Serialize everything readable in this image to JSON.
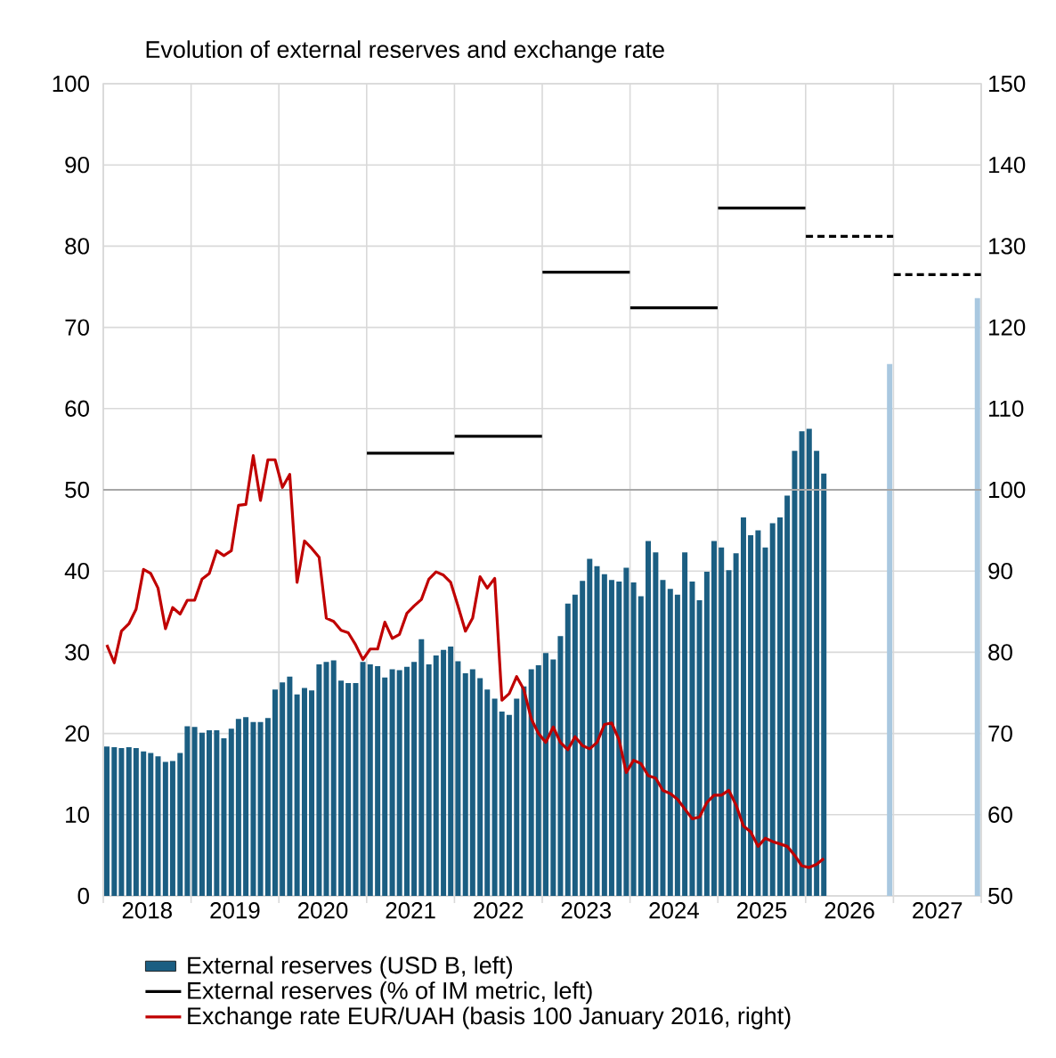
{
  "chart_data": {
    "type": "bar",
    "title": "Evolution of external reserves and exchange rate",
    "x": [
      "2018-01-16",
      "2018-02-15",
      "2018-03-16",
      "2018-04-16",
      "2018-05-16",
      "2018-06-16",
      "2018-07-16",
      "2018-08-16",
      "2018-09-16",
      "2018-10-16",
      "2018-11-16",
      "2018-12-16",
      "2019-01-16",
      "2019-02-15",
      "2019-03-16",
      "2019-04-16",
      "2019-05-16",
      "2019-06-16",
      "2019-07-16",
      "2019-08-16",
      "2019-09-16",
      "2019-10-16",
      "2019-11-16",
      "2019-12-16",
      "2020-01-16",
      "2020-02-15",
      "2020-03-16",
      "2020-04-16",
      "2020-05-16",
      "2020-06-16",
      "2020-07-16",
      "2020-08-16",
      "2020-09-16",
      "2020-10-16",
      "2020-11-16",
      "2020-12-16",
      "2021-01-16",
      "2021-02-15",
      "2021-03-16",
      "2021-04-16",
      "2021-05-16",
      "2021-06-16",
      "2021-07-16",
      "2021-08-16",
      "2021-09-16",
      "2021-10-16",
      "2021-11-16",
      "2021-12-16",
      "2022-01-16",
      "2022-02-15",
      "2022-03-16",
      "2022-04-16",
      "2022-05-16",
      "2022-06-16",
      "2022-07-16",
      "2022-08-16",
      "2022-09-16",
      "2022-10-16",
      "2022-11-16",
      "2022-12-16",
      "2023-01-16",
      "2023-02-15",
      "2023-03-16",
      "2023-04-16",
      "2023-05-16",
      "2023-06-16",
      "2023-07-16",
      "2023-08-16",
      "2023-09-16",
      "2023-10-16",
      "2023-11-16",
      "2023-12-16",
      "2024-01-16",
      "2024-02-15",
      "2024-03-16",
      "2024-04-16",
      "2024-05-16",
      "2024-06-16",
      "2024-07-16",
      "2024-08-16",
      "2024-09-16",
      "2024-10-16",
      "2024-11-16",
      "2024-12-16",
      "2025-01-16",
      "2025-02-15",
      "2025-03-16",
      "2025-04-16",
      "2025-05-16",
      "2025-06-16",
      "2025-07-16",
      "2025-08-16",
      "2025-09-16",
      "2025-10-16",
      "2025-11-16",
      "2025-12-16",
      "2026-01-16",
      "2026-02-15",
      "2026-03-16"
    ],
    "series": [
      {
        "name": "External reserves (USD B, left)",
        "color": "#1b5e82",
        "values": [
          18.4,
          18.3,
          18.2,
          18.3,
          18.2,
          17.8,
          17.6,
          17.2,
          16.5,
          16.6,
          17.6,
          20.9,
          20.8,
          20.1,
          20.4,
          20.4,
          19.4,
          20.6,
          21.8,
          22.0,
          21.4,
          21.4,
          21.9,
          25.4,
          26.3,
          27.0,
          24.8,
          25.6,
          25.3,
          28.5,
          28.8,
          29.0,
          26.5,
          26.2,
          26.2,
          28.8,
          28.5,
          28.3,
          26.9,
          27.9,
          27.8,
          28.2,
          28.8,
          31.6,
          28.5,
          29.6,
          30.3,
          30.7,
          28.9,
          27.4,
          27.9,
          26.8,
          25.4,
          24.3,
          22.7,
          22.3,
          24.3,
          25.8,
          27.9,
          28.4,
          29.9,
          29.1,
          32.0,
          36.0,
          37.1,
          38.8,
          41.5,
          40.6,
          39.6,
          38.9,
          38.7,
          40.4,
          38.6,
          36.9,
          43.7,
          42.3,
          38.9,
          37.8,
          37.1,
          42.3,
          38.7,
          36.4,
          39.9,
          43.7,
          42.9,
          40.1,
          42.2,
          46.6,
          44.4,
          45.0,
          42.9,
          45.9,
          46.6,
          49.3,
          54.8,
          57.2,
          57.5,
          54.8,
          52.0
        ]
      },
      {
        "color": "#a9c8e0",
        "x": [
          "2026-12-16",
          "2027-12-16"
        ],
        "values": [
          65.5,
          73.6
        ]
      },
      {
        "name": "External reserves (% of IM metric, left)",
        "type": "line",
        "color": "#000000",
        "line_style": "solid",
        "x": [
          "2021-01-02",
          "2021-12-31"
        ],
        "values": [
          54.5,
          54.5
        ]
      },
      {
        "type": "line",
        "color": "#000000",
        "line_style": "solid",
        "x": [
          "2022-01-02",
          "2022-12-31"
        ],
        "values": [
          56.6,
          56.6
        ]
      },
      {
        "type": "line",
        "color": "#000000",
        "line_style": "solid",
        "x": [
          "2023-01-02",
          "2023-12-31"
        ],
        "values": [
          76.8,
          76.8
        ]
      },
      {
        "type": "line",
        "color": "#000000",
        "line_style": "solid",
        "x": [
          "2024-01-02",
          "2024-12-31"
        ],
        "values": [
          72.4,
          72.4
        ]
      },
      {
        "type": "line",
        "color": "#000000",
        "line_style": "solid",
        "x": [
          "2025-01-02",
          "2025-12-31"
        ],
        "values": [
          84.7,
          84.7
        ]
      },
      {
        "type": "line",
        "color": "#000000",
        "line_style": "dashed",
        "x": [
          "2026-01-02",
          "2026-12-31"
        ],
        "values": [
          81.2,
          81.2
        ]
      },
      {
        "type": "line",
        "color": "#000000",
        "line_style": "dashed",
        "x": [
          "2027-01-02",
          "2027-12-31"
        ],
        "values": [
          76.5,
          76.5
        ]
      },
      {
        "name": "Exchange rate EUR/UAH (basis 100 January 2016, right)",
        "type": "line",
        "axis": "y2",
        "color": "#c00000",
        "line_style": "solid",
        "values": [
          80.9,
          78.7,
          82.6,
          83.5,
          85.3,
          90.2,
          89.7,
          87.9,
          82.9,
          85.5,
          84.7,
          86.4,
          86.4,
          89.0,
          89.7,
          92.5,
          91.9,
          92.5,
          98.1,
          98.2,
          104.2,
          98.7,
          103.7,
          103.7,
          100.3,
          101.9,
          88.6,
          93.7,
          92.8,
          91.7,
          84.2,
          83.8,
          82.7,
          82.4,
          80.9,
          79.1,
          80.4,
          80.4,
          83.7,
          81.7,
          82.2,
          84.8,
          85.7,
          86.5,
          89.0,
          89.9,
          89.5,
          88.6,
          85.7,
          82.6,
          84.2,
          89.3,
          87.9,
          89.1,
          74.1,
          74.9,
          77.0,
          75.4,
          71.8,
          70.0,
          68.9,
          70.8,
          68.9,
          68.0,
          69.6,
          68.5,
          68.1,
          68.9,
          71.1,
          71.3,
          69.2,
          65.2,
          66.7,
          66.3,
          64.8,
          64.5,
          63.0,
          62.6,
          61.9,
          60.7,
          59.5,
          59.7,
          61.5,
          62.4,
          62.4,
          63.0,
          61.2,
          58.6,
          57.9,
          56.1,
          57.1,
          56.7,
          56.4,
          56.1,
          55.0,
          53.7,
          53.5,
          53.9,
          54.6
        ]
      }
    ],
    "xlim": [
      "2018",
      "2028"
    ],
    "xticks": [
      {
        "value": "2018",
        "label": null
      },
      {
        "value": "2018-07-01",
        "label": "2018"
      },
      {
        "value": "2019",
        "label": null
      },
      {
        "value": "2019-07-01",
        "label": "2019"
      },
      {
        "value": "2020",
        "label": null
      },
      {
        "value": "2020-07-01",
        "label": "2020"
      },
      {
        "value": "2021",
        "label": null
      },
      {
        "value": "2021-07-01",
        "label": "2021"
      },
      {
        "value": "2022",
        "label": null
      },
      {
        "value": "2022-07-01",
        "label": "2022"
      },
      {
        "value": "2023",
        "label": null
      },
      {
        "value": "2023-07-01",
        "label": "2023"
      },
      {
        "value": "2024",
        "label": null
      },
      {
        "value": "2024-07-01",
        "label": "2024"
      },
      {
        "value": "2025",
        "label": null
      },
      {
        "value": "2025-07-01",
        "label": "2025"
      },
      {
        "value": "2026",
        "label": null
      },
      {
        "value": "2026-07-01",
        "label": "2026"
      },
      {
        "value": "2027",
        "label": null
      },
      {
        "value": "2027-07-01",
        "label": "2027"
      },
      {
        "value": "2028",
        "label": null
      }
    ],
    "ylim": [
      0,
      100
    ],
    "yticks": [
      0,
      10,
      20,
      30,
      40,
      50,
      60,
      70,
      80,
      90,
      100
    ],
    "y2lim": [
      50,
      150
    ],
    "y2ticks": [
      50,
      60,
      70,
      80,
      90,
      100,
      110,
      120,
      130,
      140,
      150
    ],
    "ref_lines": [
      {
        "axis": "y2",
        "value": 100,
        "color": "#a6a6a6"
      }
    ],
    "grid": true,
    "legend": "bottom"
  }
}
